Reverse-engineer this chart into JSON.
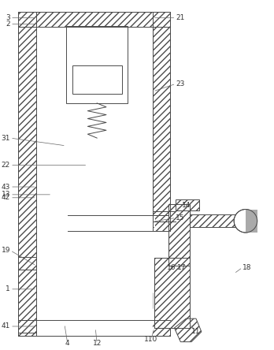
{
  "bg_color": "#ffffff",
  "line_color": "#4a4a4a",
  "fig_width": 3.48,
  "fig_height": 4.44,
  "dpi": 100,
  "lw": 0.7,
  "hatch": "////",
  "hatch_lw": 0.4
}
